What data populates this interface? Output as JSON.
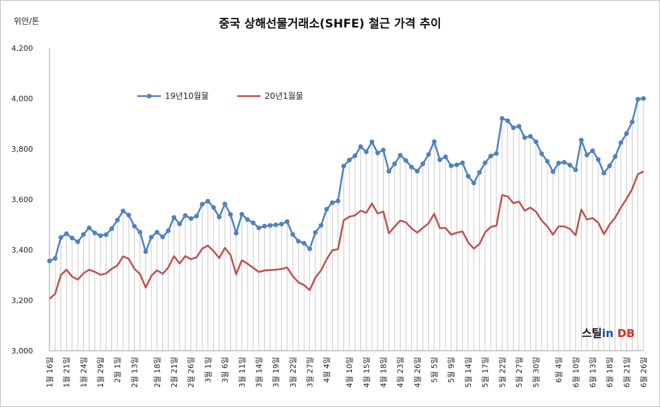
{
  "chart_data": {
    "type": "line",
    "title": "중국 상해선물거래소(SHFE) 철근 가격 추이",
    "unit": "위안/톤",
    "watermark": "스틸in DB",
    "ylim": [
      3000,
      4200
    ],
    "yticks": [
      "3,000",
      "3,200",
      "3,400",
      "3,600",
      "3,800",
      "4,000",
      "4,200"
    ],
    "grid": false,
    "drop_lines": true,
    "legend_position": "upper-left",
    "x_labels": [
      "1월 16일",
      "1월 21일",
      "1월 24일",
      "1월 29일",
      "2월 1일",
      "2월 13일",
      "2월 18일",
      "2월 21일",
      "2월 26일",
      "3월 1일",
      "3월 6일",
      "3월 11일",
      "3월 14일",
      "3월 19일",
      "3월 22일",
      "3월 27일",
      "4월 4일",
      "4월 10일",
      "4월 15일",
      "4월 18일",
      "4월 23일",
      "4월 26일",
      "5월 5일",
      "5월 9일",
      "5월 14일",
      "5월 17일",
      "5월 22일",
      "5월 27일",
      "5월 30일",
      "6월 4일",
      "6월 10일",
      "6월 13일",
      "6월 18일",
      "6월 21일",
      "6월 26일"
    ],
    "series": [
      {
        "name": "19년10월물",
        "color": "#4f81bd",
        "markers": true,
        "values": [
          3356,
          3366,
          3449,
          3464,
          3447,
          3432,
          3461,
          3487,
          3467,
          3456,
          3460,
          3484,
          3518,
          3554,
          3538,
          3494,
          3470,
          3393,
          3450,
          3470,
          3451,
          3476,
          3529,
          3503,
          3536,
          3524,
          3534,
          3581,
          3593,
          3568,
          3530,
          3582,
          3540,
          3466,
          3541,
          3520,
          3507,
          3487,
          3494,
          3497,
          3499,
          3502,
          3512,
          3461,
          3434,
          3426,
          3404,
          3469,
          3497,
          3561,
          3587,
          3594,
          3732,
          3756,
          3773,
          3809,
          3789,
          3828,
          3784,
          3796,
          3711,
          3741,
          3775,
          3754,
          3728,
          3712,
          3741,
          3778,
          3829,
          3757,
          3769,
          3733,
          3737,
          3745,
          3692,
          3665,
          3707,
          3745,
          3772,
          3782,
          3921,
          3912,
          3884,
          3890,
          3845,
          3850,
          3828,
          3781,
          3751,
          3710,
          3744,
          3747,
          3736,
          3717,
          3835,
          3776,
          3793,
          3758,
          3704,
          3733,
          3770,
          3825,
          3861,
          3907,
          3997,
          4000
        ]
      },
      {
        "name": "20년1월물",
        "color": "#c0504d",
        "markers": false,
        "values": [
          3206,
          3225,
          3300,
          3321,
          3294,
          3282,
          3307,
          3321,
          3313,
          3301,
          3306,
          3325,
          3338,
          3374,
          3365,
          3325,
          3304,
          3250,
          3297,
          3319,
          3305,
          3330,
          3375,
          3346,
          3375,
          3363,
          3370,
          3405,
          3417,
          3395,
          3367,
          3408,
          3380,
          3303,
          3359,
          3345,
          3329,
          3312,
          3318,
          3320,
          3321,
          3324,
          3330,
          3296,
          3271,
          3260,
          3240,
          3290,
          3319,
          3363,
          3398,
          3403,
          3517,
          3531,
          3537,
          3555,
          3547,
          3584,
          3544,
          3552,
          3465,
          3492,
          3516,
          3509,
          3485,
          3468,
          3487,
          3505,
          3543,
          3486,
          3487,
          3460,
          3468,
          3473,
          3430,
          3405,
          3423,
          3469,
          3491,
          3496,
          3617,
          3612,
          3585,
          3591,
          3555,
          3568,
          3551,
          3516,
          3493,
          3460,
          3493,
          3493,
          3483,
          3458,
          3560,
          3520,
          3526,
          3508,
          3462,
          3500,
          3528,
          3568,
          3602,
          3641,
          3700,
          3711
        ]
      }
    ]
  }
}
